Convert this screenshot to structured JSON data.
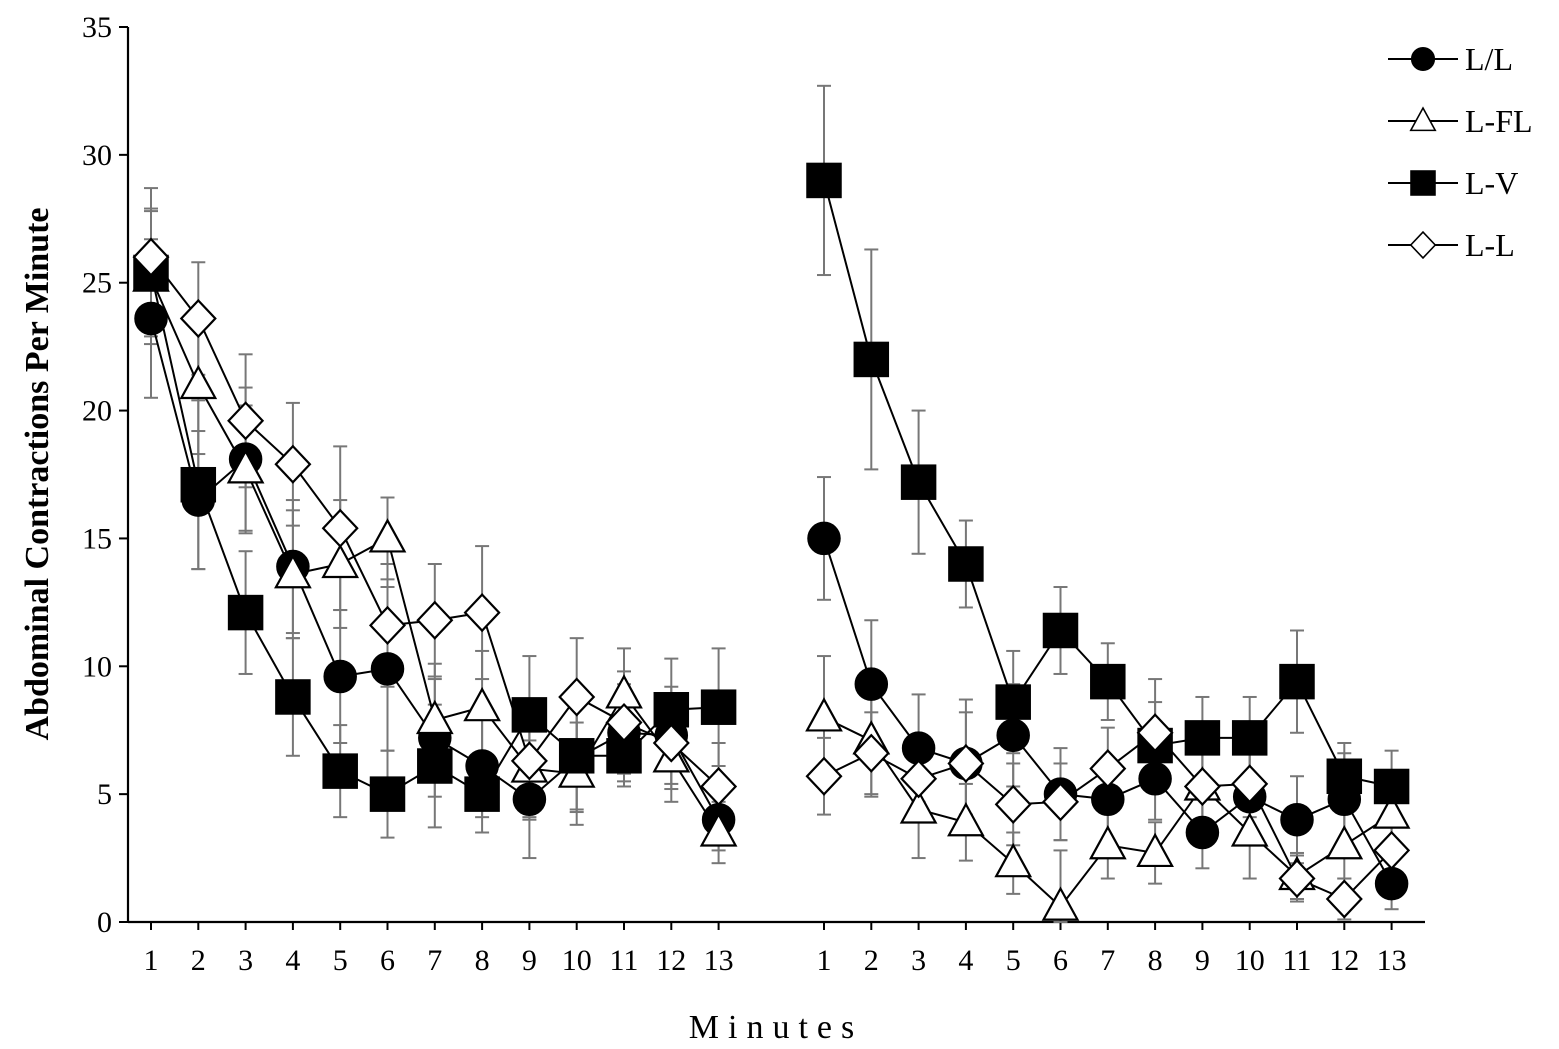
{
  "chart_data": {
    "type": "line",
    "ylabel": "Abdominal Contractions Per Minute",
    "xlabel": "Minutes",
    "ylim": [
      0,
      35
    ],
    "yticks": [
      0,
      5,
      10,
      15,
      20,
      25,
      30,
      35
    ],
    "legend_position": "top-right",
    "panels": [
      {
        "categories": [
          "1",
          "2",
          "3",
          "4",
          "5",
          "6",
          "7",
          "8",
          "9",
          "10",
          "11",
          "12",
          "13"
        ],
        "series": [
          {
            "name": "L/L",
            "marker": "filled-circle",
            "values": [
              23.6,
              16.5,
              18.1,
              13.9,
              9.6,
              9.9,
              7.2,
              6.1,
              4.8,
              6.4,
              7.4,
              7.3,
              4.0
            ],
            "errors": [
              3.1,
              2.7,
              2.8,
              2.6,
              2.6,
              3.2,
              2.3,
              2.0,
              2.3,
              2.0,
              1.9,
              1.9,
              1.2
            ]
          },
          {
            "name": "L-FL",
            "marker": "open-triangle",
            "values": [
              25.2,
              21.0,
              17.7,
              13.6,
              14.0,
              15.0,
              7.9,
              8.4,
              6.0,
              5.8,
              8.9,
              6.4,
              3.5
            ],
            "errors": [
              2.6,
              2.7,
              2.5,
              2.5,
              2.5,
              1.6,
              2.2,
              2.2,
              2.0,
              2.0,
              1.8,
              1.7,
              1.2
            ]
          },
          {
            "name": "L-V",
            "marker": "filled-square",
            "values": [
              25.4,
              17.1,
              12.1,
              8.8,
              5.9,
              5.0,
              6.1,
              5.0,
              8.1,
              6.5,
              6.5,
              8.3,
              8.4
            ],
            "errors": [
              2.5,
              3.3,
              2.4,
              2.3,
              1.8,
              1.7,
              2.4,
              1.5,
              2.3,
              2.2,
              1.2,
              2.0,
              2.3
            ]
          },
          {
            "name": "L-L",
            "marker": "open-diamond",
            "values": [
              26.0,
              23.6,
              19.6,
              17.9,
              15.4,
              11.6,
              11.8,
              12.1,
              6.3,
              8.8,
              7.8,
              7.0,
              5.3
            ],
            "errors": [
              2.7,
              2.2,
              2.6,
              2.4,
              3.2,
              2.4,
              2.2,
              2.6,
              2.2,
              2.3,
              2.0,
              1.8,
              1.7
            ]
          }
        ]
      },
      {
        "categories": [
          "1",
          "2",
          "3",
          "4",
          "5",
          "6",
          "7",
          "8",
          "9",
          "10",
          "11",
          "12",
          "13"
        ],
        "series": [
          {
            "name": "L/L",
            "marker": "filled-circle",
            "values": [
              15.0,
              9.3,
              6.8,
              6.2,
              7.3,
              5.0,
              4.8,
              5.6,
              3.5,
              4.9,
              4.0,
              4.8,
              1.5
            ],
            "errors": [
              2.4,
              2.5,
              2.1,
              2.5,
              2.0,
              1.8,
              1.6,
              1.6,
              1.4,
              1.7,
              1.7,
              1.8,
              1.0
            ]
          },
          {
            "name": "L-FL",
            "marker": "open-triangle",
            "values": [
              8.0,
              7.1,
              4.4,
              3.9,
              2.3,
              0.6,
              3.0,
              2.7,
              5.3,
              3.5,
              1.8,
              3.0,
              4.2
            ],
            "errors": [
              2.4,
              2.2,
              1.9,
              1.5,
              1.2,
              2.2,
              1.3,
              1.2,
              1.4,
              1.8,
              0.9,
              1.3,
              1.5
            ]
          },
          {
            "name": "L-V",
            "marker": "filled-square",
            "values": [
              29.0,
              22.0,
              17.2,
              14.0,
              8.6,
              11.4,
              9.4,
              6.9,
              7.2,
              7.2,
              9.4,
              5.7,
              5.3
            ],
            "errors": [
              3.7,
              4.3,
              2.8,
              1.7,
              2.0,
              1.7,
              1.5,
              1.7,
              1.6,
              1.6,
              2.0,
              1.3,
              1.4
            ]
          },
          {
            "name": "L-L",
            "marker": "open-diamond",
            "values": [
              5.7,
              6.6,
              5.6,
              6.2,
              4.6,
              4.7,
              6.0,
              7.4,
              5.3,
              5.4,
              1.7,
              0.9,
              2.8
            ],
            "errors": [
              1.5,
              1.6,
              1.6,
              2.0,
              1.6,
              1.5,
              1.6,
              2.1,
              1.4,
              1.3,
              0.9,
              0.8,
              1.0
            ]
          }
        ]
      }
    ]
  }
}
